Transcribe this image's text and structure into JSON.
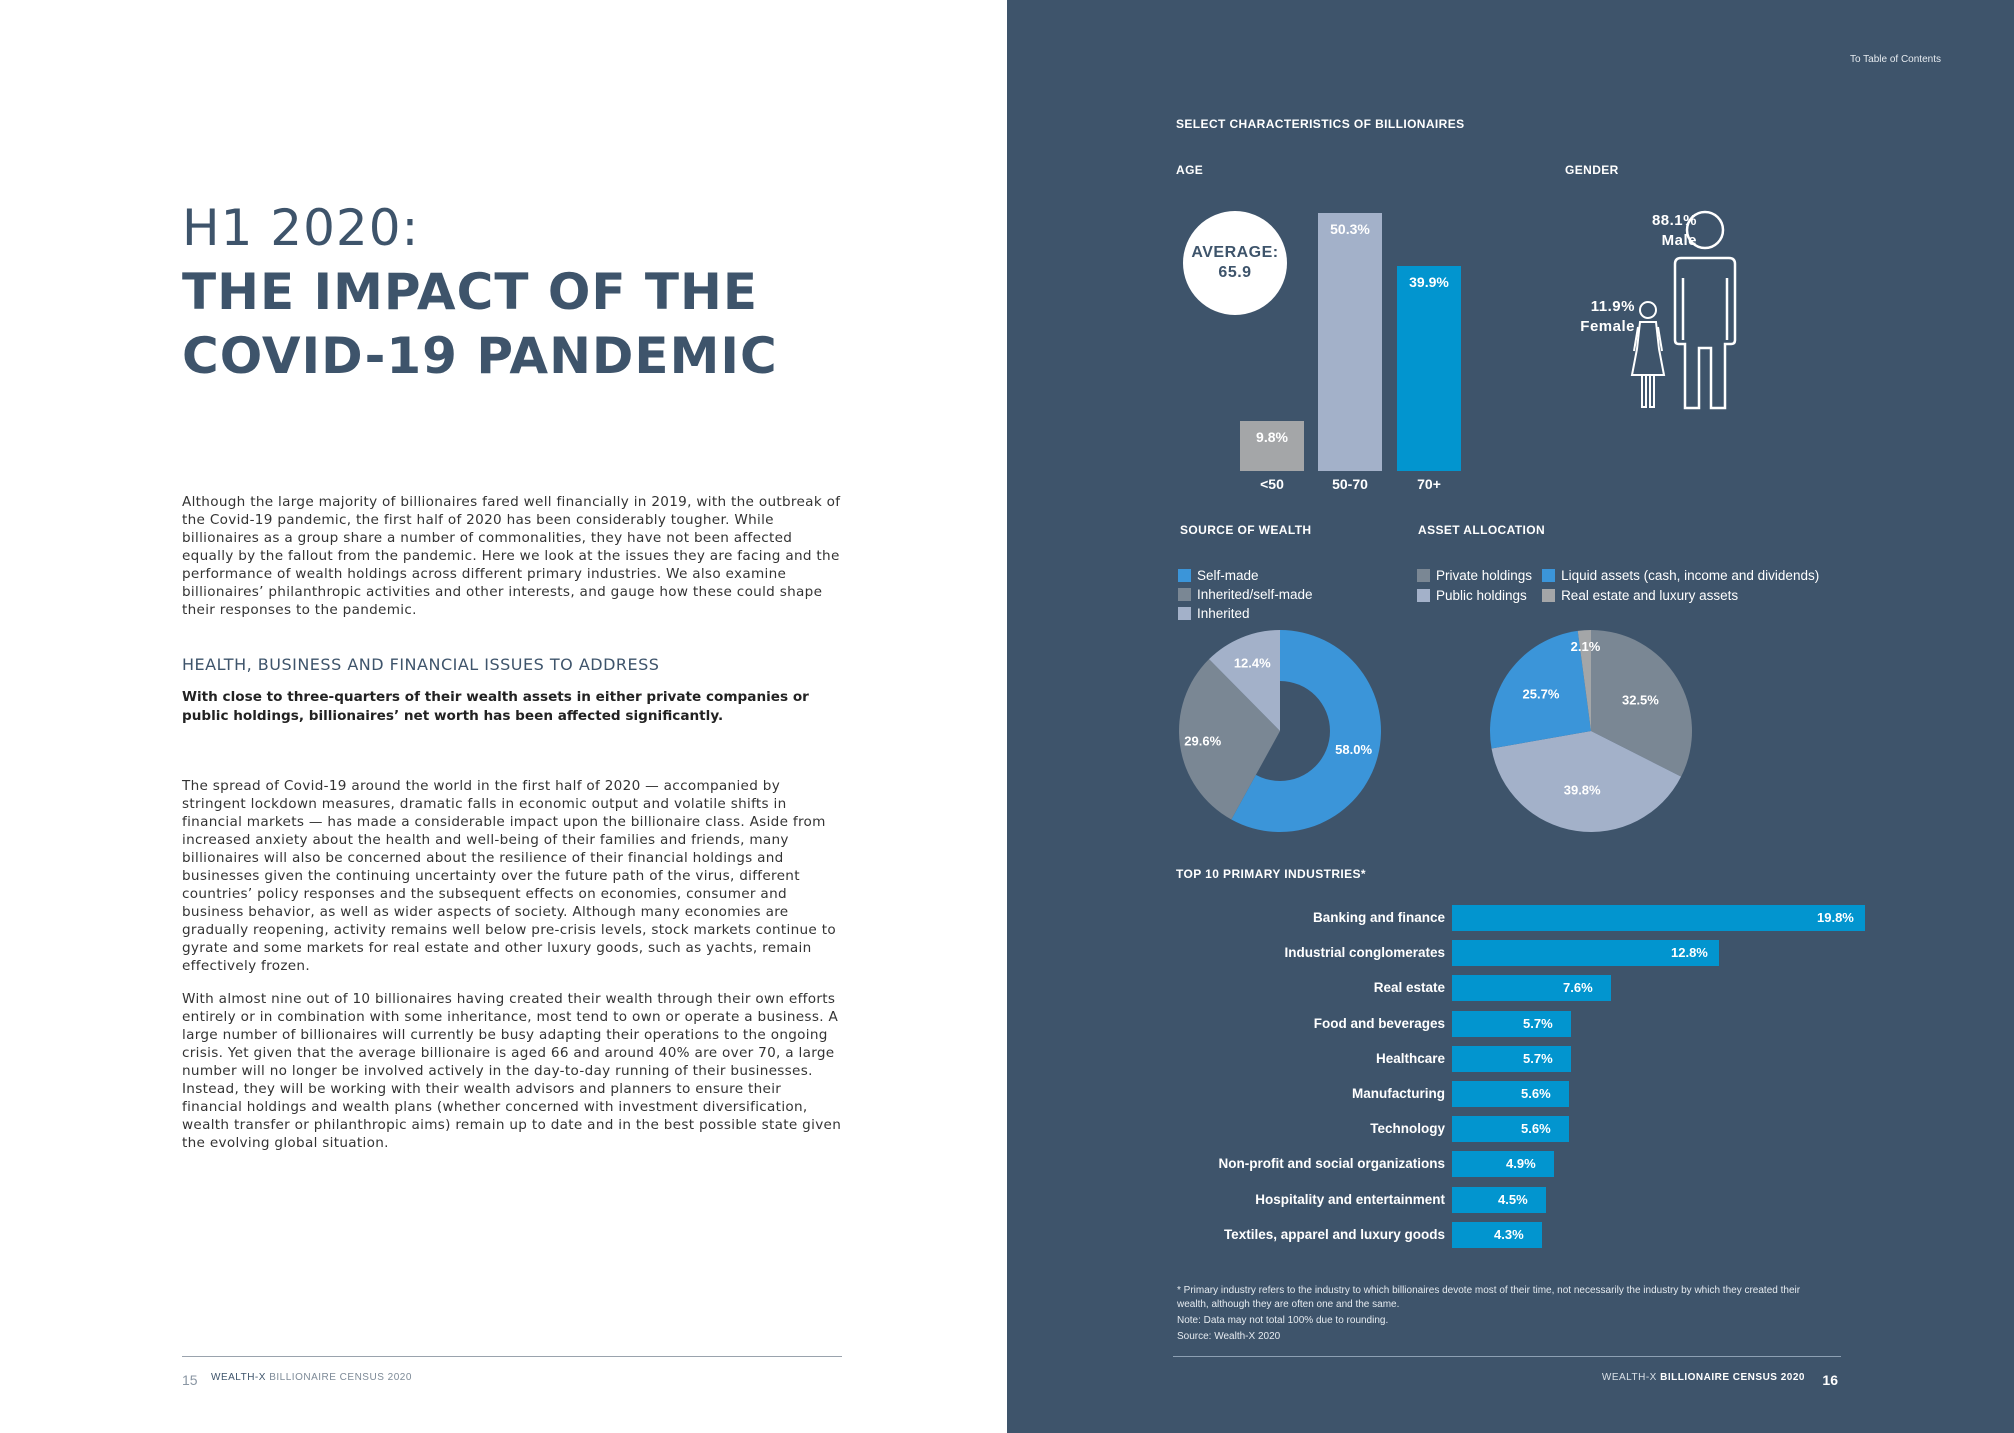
{
  "left": {
    "title_line1": "H1 2020:",
    "title_line2": "THE IMPACT OF THE",
    "title_line3": "COVID-19 PANDEMIC",
    "para1": "Although the large majority of billionaires fared well financially in 2019, with the outbreak of the Covid-19 pandemic, the first half of 2020 has been considerably tougher. While billionaires as a group share a number of commonalities, they have not been affected equally by the fallout from the pandemic. Here we look at the issues they are facing and the performance of wealth holdings across different primary industries. We also examine billionaires’ philanthropic activities and other interests, and gauge how these could shape their responses to the pandemic.",
    "subheading": "HEALTH, BUSINESS AND FINANCIAL ISSUES TO ADDRESS",
    "lead": "With close to three-quarters of their wealth assets in either private companies or public holdings, billionaires’ net worth has been affected significantly.",
    "para2": "The spread of Covid-19 around the world in the first half of 2020 — accompanied by stringent lockdown measures, dramatic falls in economic output and volatile shifts in financial markets — has made a considerable impact upon the billionaire class. Aside from increased anxiety about the health and well-being of their families and friends, many billionaires will also be concerned about the resilience of their financial holdings and businesses given the continuing uncertainty over the future path of the virus, different countries’ policy responses and the subsequent effects on economies, consumer and business behavior, as well as wider aspects of society. Although many economies are gradually reopening, activity remains well below pre-crisis levels, stock markets continue to gyrate and some markets for real estate and other luxury goods, such as yachts, remain effectively frozen.",
    "para3": "With almost nine out of 10 billionaires having created their wealth through their own efforts entirely or in combination with some inheritance, most tend to own or operate a business. A large number of billionaires will currently be busy adapting their operations to the ongoing crisis. Yet given that the average billionaire is aged 66 and around 40% are over 70, a large number will no longer be involved actively in the day-to-day running of their businesses. Instead, they will be working with their wealth advisors and planners to ensure their financial holdings and wealth plans (whether concerned with investment diversification, wealth transfer or philanthropic aims) remain up to date and in the best possible state given the evolving global situation.",
    "page_number": "15",
    "footer_brand": "WEALTH-X",
    "footer_title": "BILLIONAIRE CENSUS 2020"
  },
  "right": {
    "toc_link": "To Table of Contents",
    "section_title": "SELECT CHARACTERISTICS OF BILLIONAIRES",
    "age_heading": "AGE",
    "gender_heading": "GENDER",
    "average_label": "AVERAGE:",
    "average_value": "65.9",
    "male_pct": "88.1%",
    "male_label": "Male",
    "female_pct": "11.9%",
    "female_label": "Female",
    "source_heading": "SOURCE OF WEALTH",
    "asset_heading": "ASSET ALLOCATION",
    "industries_heading": "TOP 10 PRIMARY INDUSTRIES*",
    "note1": "* Primary industry refers to the industry to which billionaires devote most of their time, not necessarily the industry by which they created their wealth, although they are often one and the same.",
    "note2": "Note: Data may not total 100% due to rounding.",
    "note3": "Source: Wealth-X 2020",
    "footer_brand": "WEALTH-X",
    "footer_title": "BILLIONAIRE CENSUS 2020",
    "page_number": "16"
  },
  "chart_data": [
    {
      "type": "bar",
      "title": "AGE",
      "categories": [
        "<50",
        "50-70",
        "70+"
      ],
      "values": [
        9.8,
        50.3,
        39.9
      ],
      "labels": [
        "9.8%",
        "50.3%",
        "39.9%"
      ],
      "colors": [
        "#a4a6a8",
        "#a3b1c9",
        "#0295cf"
      ],
      "ylim": [
        0,
        55
      ]
    },
    {
      "type": "pie",
      "title": "SOURCE OF WEALTH",
      "donut": true,
      "categories": [
        "Self-made",
        "Inherited/self-made",
        "Inherited"
      ],
      "values": [
        58.0,
        29.6,
        12.4
      ],
      "labels": [
        "58.0%",
        "29.6%",
        "12.4%"
      ],
      "colors": [
        "#3b95d9",
        "#7a8794",
        "#a3b1c9"
      ]
    },
    {
      "type": "pie",
      "title": "ASSET ALLOCATION",
      "categories": [
        "Private holdings",
        "Public holdings",
        "Liquid assets (cash, income and dividends)",
        "Real estate and luxury assets"
      ],
      "values": [
        32.5,
        39.8,
        25.7,
        2.1
      ],
      "labels": [
        "32.5%",
        "39.8%",
        "25.7%",
        "2.1%"
      ],
      "colors": [
        "#7a8794",
        "#a3b1c9",
        "#3b95d9",
        "#a4a6a8"
      ]
    },
    {
      "type": "bar",
      "orientation": "horizontal",
      "title": "TOP 10 PRIMARY INDUSTRIES*",
      "categories": [
        "Banking and finance",
        "Industrial conglomerates",
        "Real estate",
        "Food and beverages",
        "Healthcare",
        "Manufacturing",
        "Technology",
        "Non-profit and social organizations",
        "Hospitality and entertainment",
        "Textiles, apparel and luxury goods"
      ],
      "values": [
        19.8,
        12.8,
        7.6,
        5.7,
        5.7,
        5.6,
        5.6,
        4.9,
        4.5,
        4.3
      ],
      "labels": [
        "19.8%",
        "12.8%",
        "7.6%",
        "5.7%",
        "5.7%",
        "5.6%",
        "5.6%",
        "4.9%",
        "4.5%",
        "4.3%"
      ],
      "color": "#0295cf"
    }
  ]
}
